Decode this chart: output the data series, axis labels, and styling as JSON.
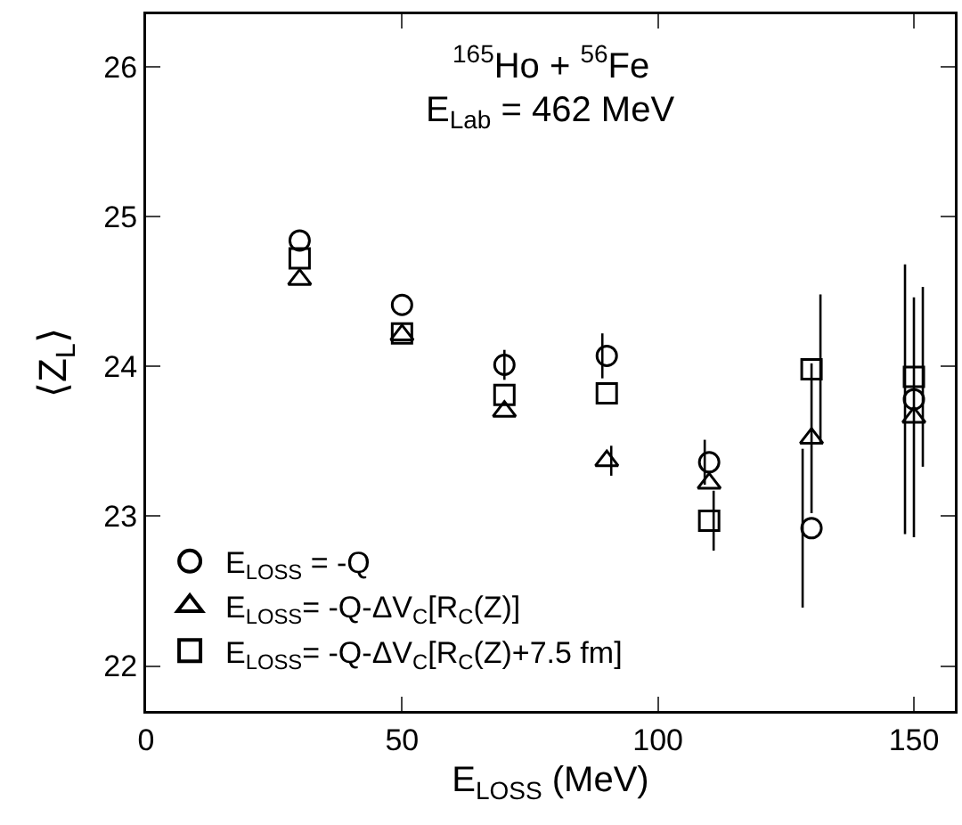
{
  "chart_data": {
    "type": "scatter",
    "xlabel": "E$_{LOSS}$ (MeV)",
    "ylabel": "⟨Z$_{L}$⟩",
    "annotations": [
      "$^{165}$Ho + $^{56}$Fe",
      "E$_{Lab}$ = 462 MeV"
    ],
    "x": [
      30,
      50,
      70,
      90,
      110,
      130,
      150
    ],
    "series": [
      {
        "name": "E$_{LOSS}$ = -Q",
        "color": "#000000",
        "marker": "circle",
        "values": [
          24.84,
          24.41,
          24.01,
          24.07,
          23.36,
          22.92,
          23.78
        ],
        "errors": [
          null,
          null,
          0.1,
          0.15,
          0.15,
          0.53,
          0.9
        ]
      },
      {
        "name": "E$_{LOSS}$= -Q-ΔV$_{C}$[R$_{C}$(Z)]",
        "color": "#000000",
        "marker": "triangle",
        "values": [
          24.58,
          24.21,
          23.7,
          23.37,
          23.22,
          23.52,
          23.66
        ],
        "errors": [
          null,
          null,
          null,
          0.1,
          null,
          0.5,
          0.8
        ]
      },
      {
        "name": "E$_{LOSS}$= -Q-ΔV$_{C}$[R$_{C}$(Z)+7.5 fm]",
        "color": "#000000",
        "marker": "square",
        "values": [
          24.72,
          24.22,
          23.81,
          23.82,
          22.97,
          23.98,
          23.93
        ],
        "errors": [
          null,
          null,
          null,
          null,
          0.2,
          0.5,
          0.6
        ]
      }
    ],
    "xlim": [
      0,
      158
    ],
    "ylim": [
      21.7,
      26.35
    ],
    "xticks": [
      0,
      50,
      100,
      150
    ],
    "yticks": [
      22,
      23,
      24,
      25,
      26
    ],
    "grid": false,
    "legend": "bottom left"
  }
}
